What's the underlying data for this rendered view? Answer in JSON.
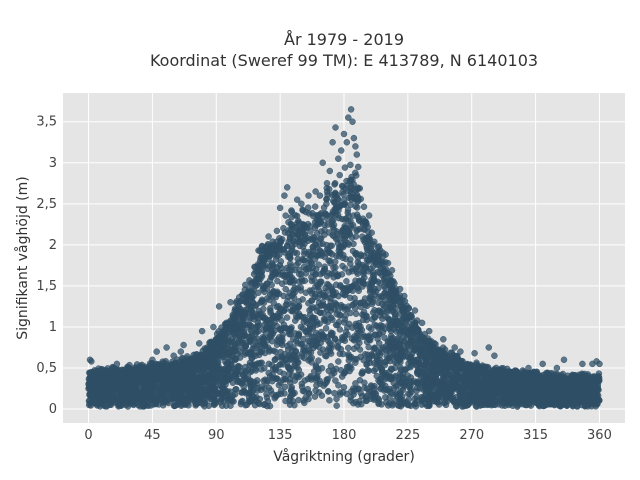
{
  "chart_data": {
    "type": "scatter",
    "title_line1": "År 1979 - 2019",
    "title_line2": "Koordinat (Sweref 99 TM): E 413789, N 6140103",
    "xlabel": "Vågriktning (grader)",
    "ylabel": "Signifikant våghöjd (m)",
    "xlim": [
      -18,
      378
    ],
    "ylim": [
      -0.17,
      3.85
    ],
    "xticks": [
      0,
      45,
      90,
      135,
      180,
      225,
      270,
      315,
      360
    ],
    "xtick_labels": [
      "0",
      "45",
      "90",
      "135",
      "180",
      "225",
      "270",
      "315",
      "360"
    ],
    "yticks": [
      0,
      0.5,
      1,
      1.5,
      2,
      2.5,
      3,
      3.5
    ],
    "ytick_labels": [
      "0",
      "0,5",
      "1",
      "1,5",
      "2",
      "2,5",
      "3",
      "3,5"
    ],
    "grid": true,
    "series": [
      {
        "color": "#2f4f66",
        "envelope": {
          "direction_deg": [
            0,
            30,
            60,
            80,
            95,
            110,
            120,
            130,
            140,
            150,
            160,
            170,
            180,
            185,
            195,
            205,
            215,
            225,
            240,
            260,
            280,
            300,
            330,
            360
          ],
          "upper_height_m": [
            0.45,
            0.5,
            0.55,
            0.65,
            0.95,
            1.4,
            1.8,
            2.05,
            2.25,
            2.25,
            2.35,
            2.55,
            2.75,
            2.85,
            2.3,
            1.9,
            1.55,
            1.2,
            0.8,
            0.6,
            0.5,
            0.45,
            0.4,
            0.4
          ]
        },
        "outliers": [
          {
            "x": 165,
            "y": 3.0
          },
          {
            "x": 168,
            "y": 2.75
          },
          {
            "x": 170,
            "y": 2.9
          },
          {
            "x": 172,
            "y": 3.25
          },
          {
            "x": 174,
            "y": 3.43
          },
          {
            "x": 176,
            "y": 3.05
          },
          {
            "x": 178,
            "y": 3.15
          },
          {
            "x": 180,
            "y": 3.35
          },
          {
            "x": 182,
            "y": 3.25
          },
          {
            "x": 183,
            "y": 3.55
          },
          {
            "x": 185,
            "y": 3.65
          },
          {
            "x": 186,
            "y": 3.5
          },
          {
            "x": 187,
            "y": 3.3
          },
          {
            "x": 188,
            "y": 3.2
          },
          {
            "x": 189,
            "y": 3.1
          },
          {
            "x": 190,
            "y": 2.95
          },
          {
            "x": 177,
            "y": 2.85
          },
          {
            "x": 163,
            "y": 2.6
          },
          {
            "x": 160,
            "y": 2.65
          },
          {
            "x": 155,
            "y": 2.6
          },
          {
            "x": 150,
            "y": 2.5
          },
          {
            "x": 147,
            "y": 2.55
          },
          {
            "x": 140,
            "y": 2.7
          },
          {
            "x": 138,
            "y": 2.6
          },
          {
            "x": 135,
            "y": 2.45
          },
          {
            "x": 1,
            "y": 0.6
          },
          {
            "x": 2,
            "y": 0.58
          },
          {
            "x": 20,
            "y": 0.55
          },
          {
            "x": 45,
            "y": 0.6
          },
          {
            "x": 48,
            "y": 0.7
          },
          {
            "x": 55,
            "y": 0.75
          },
          {
            "x": 60,
            "y": 0.65
          },
          {
            "x": 65,
            "y": 0.7
          },
          {
            "x": 67,
            "y": 0.78
          },
          {
            "x": 78,
            "y": 0.8
          },
          {
            "x": 80,
            "y": 0.95
          },
          {
            "x": 88,
            "y": 1.0
          },
          {
            "x": 92,
            "y": 1.25
          },
          {
            "x": 100,
            "y": 1.3
          },
          {
            "x": 230,
            "y": 1.2
          },
          {
            "x": 235,
            "y": 1.05
          },
          {
            "x": 240,
            "y": 0.95
          },
          {
            "x": 250,
            "y": 0.85
          },
          {
            "x": 258,
            "y": 0.75
          },
          {
            "x": 262,
            "y": 0.7
          },
          {
            "x": 272,
            "y": 0.68
          },
          {
            "x": 282,
            "y": 0.75
          },
          {
            "x": 286,
            "y": 0.65
          },
          {
            "x": 320,
            "y": 0.55
          },
          {
            "x": 330,
            "y": 0.5
          },
          {
            "x": 335,
            "y": 0.6
          },
          {
            "x": 348,
            "y": 0.55
          },
          {
            "x": 355,
            "y": 0.55
          },
          {
            "x": 358,
            "y": 0.58
          },
          {
            "x": 360,
            "y": 0.55
          },
          {
            "x": 357,
            "y": 0.25
          },
          {
            "x": 300,
            "y": 0.45
          },
          {
            "x": 310,
            "y": 0.5
          },
          {
            "x": 40,
            "y": 0.1
          },
          {
            "x": 35,
            "y": 0.05
          }
        ]
      }
    ]
  }
}
